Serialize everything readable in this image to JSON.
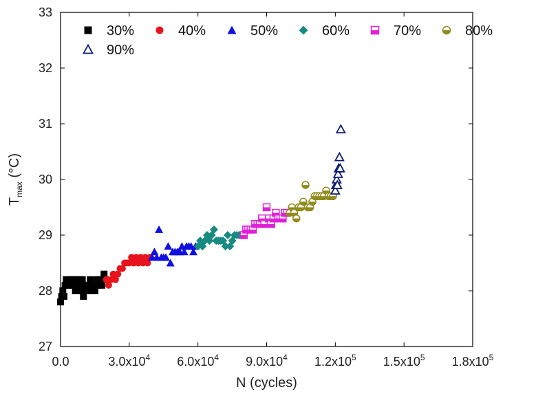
{
  "chart_data": {
    "type": "scatter",
    "title": "",
    "xlabel": "N (cycles)",
    "ylabel": {
      "main": "T",
      "sub": "max",
      "unit": " (°C)"
    },
    "xlim": [
      0,
      180000
    ],
    "ylim": [
      27,
      33
    ],
    "x_ticks": [
      {
        "value": 0,
        "mantissa": "0.0",
        "exp": ""
      },
      {
        "value": 30000,
        "mantissa": "3.0x10",
        "exp": "4"
      },
      {
        "value": 60000,
        "mantissa": "6.0x10",
        "exp": "4"
      },
      {
        "value": 90000,
        "mantissa": "9.0x10",
        "exp": "4"
      },
      {
        "value": 120000,
        "mantissa": "1.2x10",
        "exp": "5"
      },
      {
        "value": 150000,
        "mantissa": "1.5x10",
        "exp": "5"
      },
      {
        "value": 180000,
        "mantissa": "1.8x10",
        "exp": "5"
      }
    ],
    "y_ticks": [
      27,
      28,
      29,
      30,
      31,
      32,
      33
    ],
    "legend_position": "top-left",
    "series": [
      {
        "name": "30%",
        "marker": "square",
        "color": "#000000",
        "x": [
          0,
          500,
          1000,
          1500,
          2000,
          2500,
          3000,
          3500,
          4000,
          4500,
          5000,
          5500,
          6000,
          6500,
          7000,
          7500,
          8000,
          8500,
          9000,
          9500,
          10000,
          10500,
          11000,
          11500,
          12000,
          12500,
          13000,
          13500,
          14000,
          14500,
          15000,
          15500,
          16000,
          16500,
          17000,
          17500,
          18000,
          18500,
          19000,
          19500
        ],
        "y": [
          27.8,
          27.9,
          28.0,
          27.9,
          28.1,
          28.2,
          28.1,
          28.2,
          28.1,
          28.2,
          28.1,
          28.2,
          28.2,
          28.0,
          28.2,
          28.1,
          28.2,
          28.0,
          28.1,
          28.2,
          27.9,
          28.0,
          28.1,
          28.0,
          28.1,
          28.0,
          28.2,
          28.0,
          28.1,
          28.1,
          28.0,
          28.1,
          28.2,
          28.1,
          28.2,
          28.2,
          28.1,
          28.2,
          28.3,
          28.2
        ]
      },
      {
        "name": "40%",
        "marker": "circle",
        "color": "#e8141b",
        "x": [
          20000,
          21000,
          22000,
          23000,
          24000,
          25000,
          26000,
          27000,
          28000,
          29000,
          30000,
          31000,
          32000,
          33000,
          34000,
          35000,
          36000,
          37000,
          38000,
          39000
        ],
        "y": [
          28.2,
          28.1,
          28.2,
          28.3,
          28.2,
          28.3,
          28.4,
          28.4,
          28.5,
          28.5,
          28.5,
          28.6,
          28.5,
          28.6,
          28.5,
          28.6,
          28.5,
          28.6,
          28.5,
          28.6
        ]
      },
      {
        "name": "50%",
        "marker": "triangle",
        "color": "#1010e0",
        "x": [
          40000,
          41000,
          42000,
          43000,
          44000,
          45000,
          46000,
          47000,
          48000,
          49000,
          50000,
          51000,
          52000,
          53000,
          54000,
          55000,
          56000,
          57000,
          58000,
          59000
        ],
        "y": [
          28.6,
          28.7,
          28.6,
          29.1,
          28.6,
          28.6,
          28.6,
          28.8,
          28.5,
          28.7,
          28.7,
          28.7,
          28.7,
          28.8,
          28.7,
          28.8,
          28.8,
          28.8,
          28.7,
          28.8
        ]
      },
      {
        "name": "60%",
        "marker": "diamond",
        "color": "#178a82",
        "x": [
          60000,
          61000,
          62000,
          63000,
          64000,
          65000,
          66000,
          67000,
          68000,
          69000,
          70000,
          71000,
          72000,
          73000,
          74000,
          75000,
          76000,
          77000,
          78000,
          79000
        ],
        "y": [
          28.8,
          28.9,
          28.8,
          28.9,
          29.0,
          28.9,
          29.0,
          29.1,
          28.9,
          28.9,
          28.9,
          28.9,
          28.8,
          29.0,
          28.8,
          28.9,
          29.0,
          29.0,
          29.0,
          29.0
        ]
      },
      {
        "name": "70%",
        "marker": "square-half",
        "color": "#e020d8",
        "x": [
          80000,
          81000,
          82000,
          83000,
          84000,
          85000,
          86000,
          87000,
          88000,
          89000,
          90000,
          91000,
          92000,
          93000,
          94000,
          95000,
          96000,
          97000,
          98000,
          99000
        ],
        "y": [
          29.0,
          29.1,
          29.1,
          29.1,
          29.1,
          29.2,
          29.2,
          29.2,
          29.3,
          29.2,
          29.5,
          29.3,
          29.2,
          29.3,
          29.4,
          29.3,
          29.3,
          29.3,
          29.4,
          29.4
        ]
      },
      {
        "name": "80%",
        "marker": "circle-half",
        "color": "#8f8b1c",
        "x": [
          100000,
          101000,
          102000,
          103000,
          104000,
          105000,
          106000,
          107000,
          108000,
          109000,
          110000,
          111000,
          112000,
          113000,
          114000,
          115000,
          116000,
          117000,
          118000,
          119000
        ],
        "y": [
          29.4,
          29.5,
          29.4,
          29.3,
          29.5,
          29.5,
          29.6,
          29.9,
          29.5,
          29.5,
          29.6,
          29.7,
          29.7,
          29.7,
          29.7,
          29.7,
          29.8,
          29.7,
          29.7,
          29.7
        ]
      },
      {
        "name": "90%",
        "marker": "triangle-open",
        "color": "#0c1a6e",
        "x": [
          120000,
          120300,
          120600,
          120900,
          121200,
          121500,
          121800,
          122100,
          122400
        ],
        "y": [
          29.8,
          29.9,
          30.0,
          29.9,
          30.1,
          30.2,
          30.4,
          30.2,
          30.9
        ]
      }
    ]
  }
}
